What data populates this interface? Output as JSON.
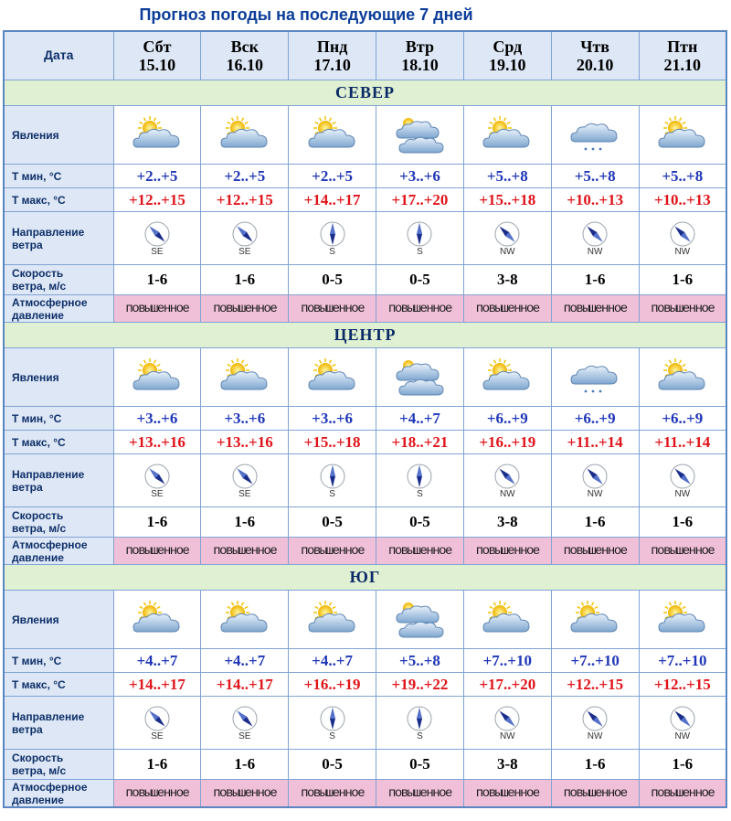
{
  "title": "Прогноз погоды на последующие 7 дней",
  "header_label": "Дата",
  "days": [
    {
      "name": "Сбт",
      "date": "15.10"
    },
    {
      "name": "Вск",
      "date": "16.10"
    },
    {
      "name": "Пнд",
      "date": "17.10"
    },
    {
      "name": "Втр",
      "date": "18.10"
    },
    {
      "name": "Срд",
      "date": "19.10"
    },
    {
      "name": "Чтв",
      "date": "20.10"
    },
    {
      "name": "Птн",
      "date": "21.10"
    }
  ],
  "row_labels": {
    "phenomena": "Явления",
    "tmin": "Т мин, °С",
    "tmax": "Т макс, °С",
    "wind_dir_1": "Направление",
    "wind_dir_2": "ветра",
    "wind_speed_1": "Скорость",
    "wind_speed_2": "ветра, м/с",
    "pressure_1": "Атмосферное",
    "pressure_2": "давление"
  },
  "regions": [
    {
      "name": "СЕВЕР",
      "icons": [
        "partly-cloudy-icon",
        "partly-cloudy-icon",
        "partly-cloudy-icon",
        "overcast-icon",
        "partly-cloudy-icon",
        "light-rain-icon",
        "partly-cloudy-icon"
      ],
      "tmin": [
        "+2..+5",
        "+2..+5",
        "+2..+5",
        "+3..+6",
        "+5..+8",
        "+5..+8",
        "+5..+8"
      ],
      "tmax": [
        "+12..+15",
        "+12..+15",
        "+14..+17",
        "+17..+20",
        "+15..+18",
        "+10..+13",
        "+10..+13"
      ],
      "wind": [
        "SE",
        "SE",
        "S",
        "S",
        "NW",
        "NW",
        "NW"
      ],
      "speed": [
        "1-6",
        "1-6",
        "0-5",
        "0-5",
        "3-8",
        "1-6",
        "1-6"
      ],
      "pressure": [
        "повышенное",
        "повышенное",
        "повышенное",
        "повышенное",
        "повышенное",
        "повышенное",
        "повышенное"
      ]
    },
    {
      "name": "ЦЕНТР",
      "icons": [
        "partly-cloudy-icon",
        "partly-cloudy-icon",
        "partly-cloudy-icon",
        "overcast-icon",
        "partly-cloudy-icon",
        "light-rain-icon",
        "partly-cloudy-icon"
      ],
      "tmin": [
        "+3..+6",
        "+3..+6",
        "+3..+6",
        "+4..+7",
        "+6..+9",
        "+6..+9",
        "+6..+9"
      ],
      "tmax": [
        "+13..+16",
        "+13..+16",
        "+15..+18",
        "+18..+21",
        "+16..+19",
        "+11..+14",
        "+11..+14"
      ],
      "wind": [
        "SE",
        "SE",
        "S",
        "S",
        "NW",
        "NW",
        "NW"
      ],
      "speed": [
        "1-6",
        "1-6",
        "0-5",
        "0-5",
        "3-8",
        "1-6",
        "1-6"
      ],
      "pressure": [
        "повышенное",
        "повышенное",
        "повышенное",
        "повышенное",
        "повышенное",
        "повышенное",
        "повышенное"
      ]
    },
    {
      "name": "ЮГ",
      "icons": [
        "partly-cloudy-icon",
        "partly-cloudy-icon",
        "partly-cloudy-icon",
        "overcast-icon",
        "partly-cloudy-icon",
        "partly-cloudy-icon",
        "partly-cloudy-icon"
      ],
      "tmin": [
        "+4..+7",
        "+4..+7",
        "+4..+7",
        "+5..+8",
        "+7..+10",
        "+7..+10",
        "+7..+10"
      ],
      "tmax": [
        "+14..+17",
        "+14..+17",
        "+16..+19",
        "+19..+22",
        "+17..+20",
        "+12..+15",
        "+12..+15"
      ],
      "wind": [
        "SE",
        "SE",
        "S",
        "S",
        "NW",
        "NW",
        "NW"
      ],
      "speed": [
        "1-6",
        "1-6",
        "0-5",
        "0-5",
        "3-8",
        "1-6",
        "1-6"
      ],
      "pressure": [
        "повышенное",
        "повышенное",
        "повышенное",
        "повышенное",
        "повышенное",
        "повышенное",
        "повышенное"
      ]
    }
  ],
  "colors": {
    "tmin": "#1f36b8",
    "tmax": "#e0141a",
    "pressure_bg": "#f0bfd8",
    "region_bg": "#dff0d3",
    "header_bg": "#dde7f5"
  }
}
